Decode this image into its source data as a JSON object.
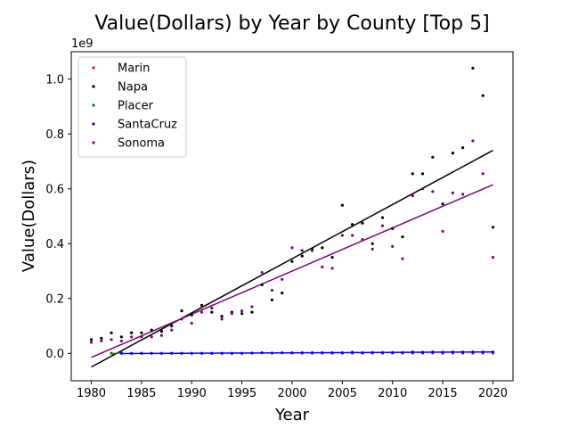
{
  "chart_data": {
    "type": "scatter",
    "title": "Value(Dollars) by Year by County [Top 5]",
    "xlabel": "Year",
    "ylabel": "Value(Dollars)",
    "y_offset_label": "1e9",
    "xlim": [
      1978,
      2022
    ],
    "ylim": [
      -0.1,
      1.1
    ],
    "x_ticks": [
      1980,
      1985,
      1990,
      1995,
      2000,
      2005,
      2010,
      2015,
      2020
    ],
    "y_ticks": [
      0.0,
      0.2,
      0.4,
      0.6,
      0.8,
      1.0
    ],
    "y_tick_labels": [
      "0.0",
      "0.2",
      "0.4",
      "0.6",
      "0.8",
      "1.0"
    ],
    "legend_position": "upper-left",
    "grid": false,
    "series": [
      {
        "name": "Marin",
        "color": "#ff0000",
        "x": [
          2000,
          2001,
          2002,
          2003,
          2004,
          2005,
          2006,
          2007,
          2008,
          2009,
          2010,
          2011,
          2012,
          2013,
          2014,
          2015,
          2016,
          2017,
          2018,
          2019,
          2020
        ],
        "y": [
          0.001,
          0.001,
          0.001,
          0.001,
          0.001,
          0.001,
          0.001,
          0.001,
          0.001,
          0.001,
          0.001,
          0.001,
          0.001,
          0.001,
          0.001,
          0.001,
          0.001,
          0.001,
          0.001,
          0.001,
          0.001
        ],
        "trend": null
      },
      {
        "name": "Napa",
        "color": "#000000",
        "x": [
          1980,
          1981,
          1982,
          1983,
          1984,
          1985,
          1986,
          1987,
          1988,
          1989,
          1990,
          1991,
          1992,
          1993,
          1994,
          1995,
          1996,
          1997,
          1998,
          1999,
          2000,
          2001,
          2002,
          2003,
          2004,
          2005,
          2006,
          2007,
          2008,
          2009,
          2010,
          2011,
          2012,
          2013,
          2014,
          2015,
          2016,
          2017,
          2018,
          2019,
          2020
        ],
        "y": [
          0.05,
          0.055,
          0.075,
          0.06,
          0.075,
          0.075,
          0.085,
          0.08,
          0.1,
          0.155,
          0.14,
          0.175,
          0.15,
          0.135,
          0.15,
          0.145,
          0.15,
          0.25,
          0.195,
          0.22,
          0.335,
          0.355,
          0.38,
          0.385,
          0.35,
          0.54,
          0.47,
          0.475,
          0.4,
          0.495,
          0.455,
          0.425,
          0.655,
          0.655,
          0.715,
          0.545,
          0.73,
          0.75,
          1.04,
          0.94,
          0.46
        ],
        "trend": [
          [
            1980,
            -0.05
          ],
          [
            2020,
            0.74
          ]
        ]
      },
      {
        "name": "Placer",
        "color": "#008000",
        "x": [
          1982,
          1983
        ],
        "y": [
          0.0,
          0.002
        ],
        "trend": [
          [
            1982,
            -0.002
          ],
          [
            1983,
            0.002
          ]
        ]
      },
      {
        "name": "SantaCruz",
        "color": "#0000ff",
        "x": [
          1983,
          1984,
          1985,
          1986,
          1987,
          1988,
          1989,
          1990,
          1991,
          1992,
          1993,
          1994,
          1995,
          1996,
          1997,
          1998,
          1999,
          2000,
          2001,
          2002,
          2003,
          2004,
          2005,
          2006,
          2007,
          2008,
          2009,
          2010,
          2011,
          2012,
          2013,
          2014,
          2015,
          2016,
          2017,
          2018,
          2019,
          2020
        ],
        "y": [
          0.0,
          0.0,
          0.0,
          0.0,
          0.0,
          0.0,
          0.0,
          0.0,
          0.0,
          0.0,
          0.0,
          0.0,
          0.0,
          0.001,
          0.002,
          0.001,
          0.002,
          0.002,
          0.002,
          0.002,
          0.002,
          0.002,
          0.002,
          0.004,
          0.002,
          0.003,
          0.003,
          0.003,
          0.003,
          0.005,
          0.004,
          0.005,
          0.004,
          0.005,
          0.005,
          0.005,
          0.005,
          0.005
        ],
        "trend": [
          [
            1983,
            -0.001
          ],
          [
            2020,
            0.005
          ]
        ]
      },
      {
        "name": "Sonoma",
        "color": "#800080",
        "x": [
          1980,
          1981,
          1982,
          1983,
          1984,
          1985,
          1986,
          1987,
          1988,
          1989,
          1990,
          1991,
          1992,
          1993,
          1994,
          1995,
          1996,
          1997,
          1998,
          1999,
          2000,
          2001,
          2002,
          2003,
          2004,
          2005,
          2006,
          2007,
          2008,
          2009,
          2010,
          2011,
          2012,
          2013,
          2014,
          2015,
          2016,
          2017,
          2018,
          2019,
          2020
        ],
        "y": [
          0.04,
          0.045,
          0.05,
          0.045,
          0.06,
          0.06,
          0.06,
          0.065,
          0.085,
          0.125,
          0.11,
          0.15,
          0.165,
          0.125,
          0.145,
          0.155,
          0.17,
          0.295,
          0.23,
          0.27,
          0.385,
          0.375,
          0.375,
          0.315,
          0.31,
          0.43,
          0.43,
          0.415,
          0.38,
          0.465,
          0.39,
          0.345,
          0.575,
          0.6,
          0.59,
          0.445,
          0.585,
          0.58,
          0.775,
          0.655,
          0.35
        ],
        "trend": [
          [
            1980,
            -0.015
          ],
          [
            2020,
            0.615
          ]
        ]
      }
    ]
  }
}
